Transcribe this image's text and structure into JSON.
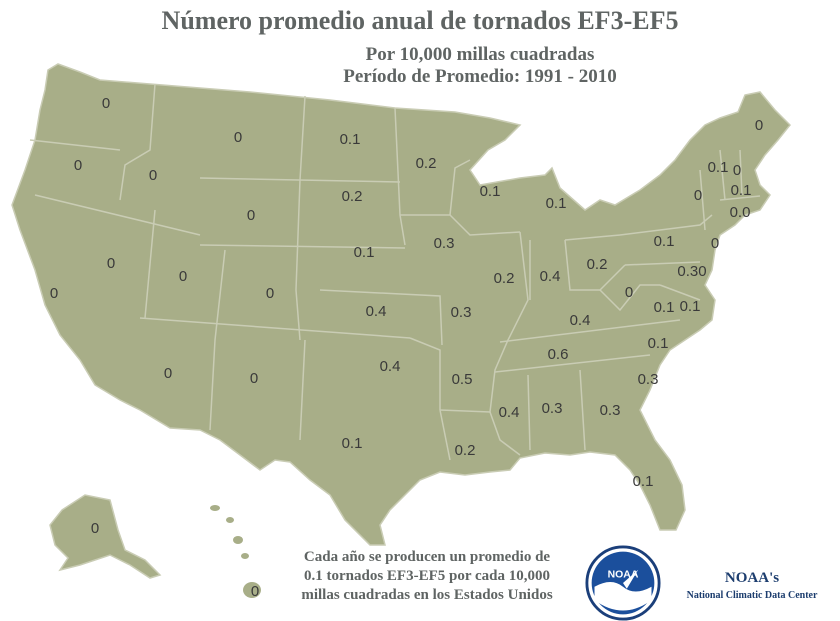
{
  "title": "Número promedio anual de tornados EF3-EF5",
  "subtitle_line1": "Por 10,000 millas cuadradas",
  "subtitle_line2": "Período de Promedio: 1991 - 2010",
  "footer": {
    "line1": "Cada año se producen un promedio de",
    "line2": "0.1 tornados EF3-EF5 por cada 10,000",
    "line3": "millas cuadradas en los Estados Unidos"
  },
  "branding": {
    "logo_text": "NOAA",
    "org_short": "NOAA's",
    "org_name": "National Climatic Data Center"
  },
  "colors": {
    "land": "#a8ae88",
    "border": "#c9ccb4",
    "text": "#5f6463"
  },
  "state_values": [
    {
      "name": "WA",
      "value": "0"
    },
    {
      "name": "OR",
      "value": "0"
    },
    {
      "name": "ID",
      "value": "0"
    },
    {
      "name": "MT",
      "value": "0"
    },
    {
      "name": "ND",
      "value": "0.1"
    },
    {
      "name": "MN",
      "value": "0.2"
    },
    {
      "name": "WY",
      "value": "0"
    },
    {
      "name": "SD",
      "value": "0.2"
    },
    {
      "name": "WI",
      "value": "0.1"
    },
    {
      "name": "MI",
      "value": "0.1"
    },
    {
      "name": "NV",
      "value": "0"
    },
    {
      "name": "UT",
      "value": "0"
    },
    {
      "name": "CO",
      "value": "0"
    },
    {
      "name": "NE",
      "value": "0.1"
    },
    {
      "name": "IA",
      "value": "0.3"
    },
    {
      "name": "IL",
      "value": "0.2"
    },
    {
      "name": "IN",
      "value": "0.4"
    },
    {
      "name": "OH",
      "value": "0.2"
    },
    {
      "name": "PA",
      "value": "0.1"
    },
    {
      "name": "NY",
      "value": "0"
    },
    {
      "name": "CA",
      "value": "0"
    },
    {
      "name": "KS",
      "value": "0.4"
    },
    {
      "name": "MO",
      "value": "0.3"
    },
    {
      "name": "KY",
      "value": "0.4"
    },
    {
      "name": "WV",
      "value": "0"
    },
    {
      "name": "VA",
      "value": "0.1"
    },
    {
      "name": "AZ",
      "value": "0"
    },
    {
      "name": "NM",
      "value": "0"
    },
    {
      "name": "OK",
      "value": "0.4"
    },
    {
      "name": "AR",
      "value": "0.5"
    },
    {
      "name": "TN",
      "value": "0.6"
    },
    {
      "name": "NC",
      "value": "0.1"
    },
    {
      "name": "SC",
      "value": "0.3"
    },
    {
      "name": "TX",
      "value": "0.1"
    },
    {
      "name": "MS",
      "value": "0.4"
    },
    {
      "name": "AL",
      "value": "0.3"
    },
    {
      "name": "GA",
      "value": "0.3"
    },
    {
      "name": "LA",
      "value": "0.2"
    },
    {
      "name": "FL",
      "value": "0.1"
    },
    {
      "name": "ME",
      "value": "0"
    },
    {
      "name": "VT",
      "value": "0.1"
    },
    {
      "name": "NH",
      "value": "0"
    },
    {
      "name": "MA",
      "value": "0.1"
    },
    {
      "name": "CT-RI",
      "value": "0.0"
    },
    {
      "name": "NJ",
      "value": "0"
    },
    {
      "name": "DE-MD",
      "value": "0.30"
    },
    {
      "name": "MD",
      "value": "0.1"
    },
    {
      "name": "AK",
      "value": "0"
    },
    {
      "name": "HI",
      "value": "0"
    }
  ]
}
